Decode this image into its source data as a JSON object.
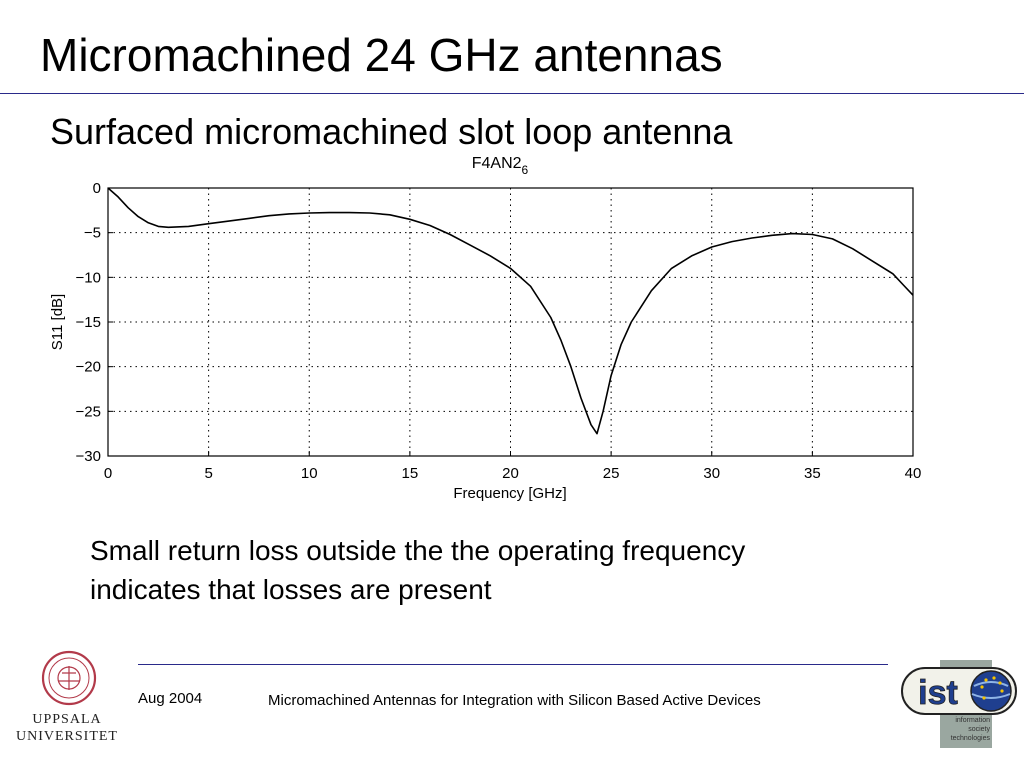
{
  "slide": {
    "title": "Micromachined 24 GHz antennas",
    "subtitle": "Surfaced micromachined slot loop antenna",
    "note_line1": "Small return loss outside the the operating frequency",
    "note_line2": "indicates that losses are present"
  },
  "footer": {
    "date": "Aug 2004",
    "text": "Micromachined Antennas for Integration with Silicon Based Active Devices",
    "university_line1": "UPPSALA",
    "university_line2": "UNIVERSITET",
    "ist_logo_text": "ist",
    "ist_caption": [
      "information",
      "society",
      "technologies"
    ]
  },
  "colors": {
    "rule": "#2a2a8a",
    "uppsala_red": "#b23a4a",
    "ist_blue": "#1f3f8f"
  },
  "chart_data": {
    "type": "line",
    "title": "F4AN2",
    "title_subscript": "6",
    "xlabel": "Frequency [GHz]",
    "ylabel": "S11 [dB]",
    "xlim": [
      0,
      40
    ],
    "ylim": [
      -30,
      0
    ],
    "xticks": [
      0,
      5,
      10,
      15,
      20,
      25,
      30,
      35,
      40
    ],
    "yticks": [
      0,
      -5,
      -10,
      -15,
      -20,
      -25,
      -30
    ],
    "grid": true,
    "series": [
      {
        "x": [
          0,
          0.5,
          1,
          1.5,
          2,
          2.5,
          3,
          4,
          5,
          6,
          7,
          8,
          9,
          10,
          11,
          12,
          13,
          14,
          15,
          16,
          17,
          18,
          19,
          20,
          21,
          22,
          22.5,
          23,
          23.5,
          24,
          24.3,
          24.6,
          25,
          25.5,
          26,
          27,
          28,
          29,
          30,
          31,
          32,
          33,
          34,
          35,
          36,
          37,
          38,
          39,
          39.5,
          40
        ],
        "y": [
          0,
          -1.0,
          -2.2,
          -3.2,
          -3.9,
          -4.3,
          -4.4,
          -4.3,
          -4.0,
          -3.7,
          -3.4,
          -3.1,
          -2.9,
          -2.8,
          -2.75,
          -2.75,
          -2.8,
          -3.0,
          -3.5,
          -4.2,
          -5.2,
          -6.4,
          -7.6,
          -9.0,
          -11.0,
          -14.5,
          -17.0,
          -20.0,
          -23.5,
          -26.5,
          -27.5,
          -25.0,
          -21.0,
          -17.5,
          -15.0,
          -11.5,
          -9.0,
          -7.6,
          -6.6,
          -6.0,
          -5.6,
          -5.3,
          -5.1,
          -5.2,
          -5.7,
          -6.8,
          -8.2,
          -9.6,
          -10.8,
          -12.0
        ]
      }
    ]
  }
}
